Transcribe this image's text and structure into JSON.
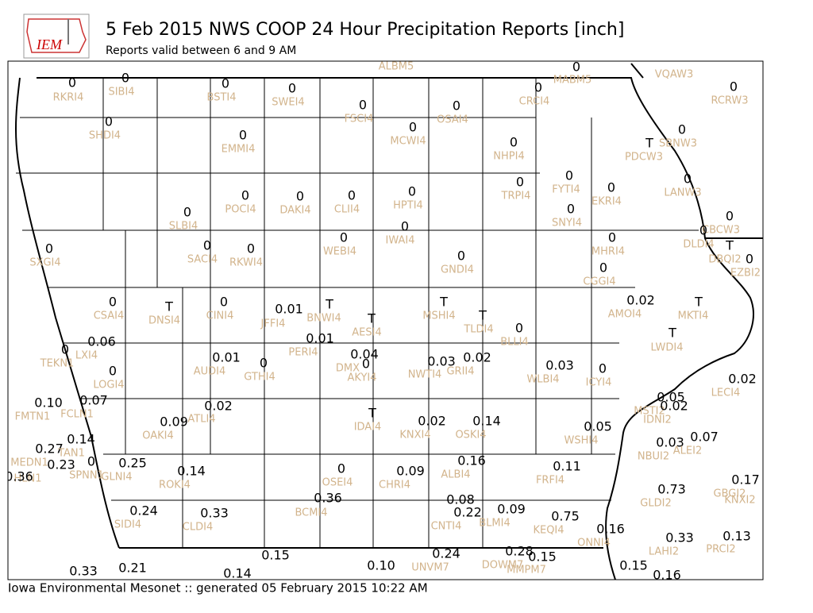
{
  "header": {
    "logo": "IEM",
    "title": "5 Feb 2015 NWS COOP 24 Hour Precipitation Reports [inch]",
    "subtitle": "Reports valid between 6 and 9 AM"
  },
  "footer": "Iowa Environmental Mesonet :: generated 05 February 2015 10:22 AM",
  "stations": [
    {
      "id": "RKRI4",
      "value": "0"
    },
    {
      "id": "SIBI4",
      "value": "0"
    },
    {
      "id": "BSTI4",
      "value": "0"
    },
    {
      "id": "SWEI4",
      "value": "0"
    },
    {
      "id": "FSCI4",
      "value": "0"
    },
    {
      "id": "OSAI4",
      "value": "0"
    },
    {
      "id": "CRCI4",
      "value": "0"
    },
    {
      "id": "MABM5",
      "value": "0"
    },
    {
      "id": "RCRW3",
      "value": "0"
    },
    {
      "id": "SHDI4",
      "value": "0"
    },
    {
      "id": "EMMI4",
      "value": "0"
    },
    {
      "id": "MCWI4",
      "value": "0"
    },
    {
      "id": "NHPI4",
      "value": "0"
    },
    {
      "id": "SBNW3",
      "value": "0"
    },
    {
      "id": "PDCW3",
      "value": "T"
    },
    {
      "id": "LANW3",
      "value": "0"
    },
    {
      "id": "FYTI4",
      "value": "0"
    },
    {
      "id": "EKRI4",
      "value": "0"
    },
    {
      "id": "TRPI4",
      "value": "0"
    },
    {
      "id": "POCI4",
      "value": "0"
    },
    {
      "id": "DAKI4",
      "value": "0"
    },
    {
      "id": "CLII4",
      "value": "0"
    },
    {
      "id": "HPTI4",
      "value": "0"
    },
    {
      "id": "SLBI4",
      "value": "0"
    },
    {
      "id": "SNYI4",
      "value": "0"
    },
    {
      "id": "CBCW3",
      "value": "0"
    },
    {
      "id": "DLDI4",
      "value": "0"
    },
    {
      "id": "IWAI4",
      "value": "0"
    },
    {
      "id": "WEBI4",
      "value": "0"
    },
    {
      "id": "SACI4",
      "value": "0"
    },
    {
      "id": "RKWI4",
      "value": "0"
    },
    {
      "id": "SXGI4",
      "value": "0"
    },
    {
      "id": "GNDI4",
      "value": "0"
    },
    {
      "id": "MHRI4",
      "value": "0"
    },
    {
      "id": "DBQI2",
      "value": "T"
    },
    {
      "id": "EZBI2",
      "value": "0"
    },
    {
      "id": "CGGI4",
      "value": "0"
    },
    {
      "id": "CSAI4",
      "value": "0"
    },
    {
      "id": "DNSI4",
      "value": "T"
    },
    {
      "id": "CINI4",
      "value": "0"
    },
    {
      "id": "JFFI4",
      "value": "0.01"
    },
    {
      "id": "BNWI4",
      "value": "T"
    },
    {
      "id": "AESI4",
      "value": "T"
    },
    {
      "id": "MSHI4",
      "value": "T"
    },
    {
      "id": "TLDI4",
      "value": "T"
    },
    {
      "id": "BLLI4",
      "value": "0"
    },
    {
      "id": "AMOI4",
      "value": "0.02"
    },
    {
      "id": "MKTI4",
      "value": "T"
    },
    {
      "id": "LWDI4",
      "value": "T"
    },
    {
      "id": "PERI4",
      "value": "0.01"
    },
    {
      "id": "LXI4",
      "value": "0.06"
    },
    {
      "id": "TEKN1",
      "value": "0"
    },
    {
      "id": "AUDI4",
      "value": "0.01"
    },
    {
      "id": "GTHI4",
      "value": "0"
    },
    {
      "id": "DMX",
      "value": "0.04"
    },
    {
      "id": "AKYI4",
      "value": "0"
    },
    {
      "id": "NWTI4",
      "value": "0.03"
    },
    {
      "id": "GRII4",
      "value": "0.02"
    },
    {
      "id": "WLBI4",
      "value": "0.03"
    },
    {
      "id": "ICYI4",
      "value": "0"
    },
    {
      "id": "LOGI4",
      "value": "0"
    },
    {
      "id": "LECI4",
      "value": "0.02"
    },
    {
      "id": "FMTN1",
      "value": "0.10"
    },
    {
      "id": "FCLN1",
      "value": "0.07"
    },
    {
      "id": "ATLI4",
      "value": "0.02"
    },
    {
      "id": "OAKI4",
      "value": "0.09"
    },
    {
      "id": "IDAI4",
      "value": "T"
    },
    {
      "id": "KNXI4",
      "value": "0.02"
    },
    {
      "id": "OSKI4",
      "value": "0.14"
    },
    {
      "id": "WSHI4",
      "value": "0.05"
    },
    {
      "id": "MSTI2",
      "value": "0.05"
    },
    {
      "id": "IDNI2",
      "value": "0.02"
    },
    {
      "id": "NBUI2",
      "value": "0.03"
    },
    {
      "id": "ALEI2",
      "value": "0.07"
    },
    {
      "id": "MEDN1",
      "value": "0.27"
    },
    {
      "id": "TAN1",
      "value": "0.14"
    },
    {
      "id": "HLN1",
      "value": "0.23"
    },
    {
      "id": "SPNN1",
      "value": "0"
    },
    {
      "id": "GLNI4",
      "value": "0.25"
    },
    {
      "id": "ROKI4",
      "value": "0.14"
    },
    {
      "id": "OSEI4",
      "value": "0"
    },
    {
      "id": "CHRI4",
      "value": "0.09"
    },
    {
      "id": "ALBI4",
      "value": "0.16"
    },
    {
      "id": "FRFI4",
      "value": "0.11"
    },
    {
      "id": "GBGI2",
      "value": "0.17"
    },
    {
      "id": "BCMI4",
      "value": "0.36"
    },
    {
      "id": "CNTI4",
      "value": "0.22"
    },
    {
      "id": "BLMI4",
      "value": "0.09"
    },
    {
      "id": "KEQI4",
      "value": "0.75"
    },
    {
      "id": "GLDI2",
      "value": "0.73"
    },
    {
      "id": "SIDI4",
      "value": "0.24"
    },
    {
      "id": "CLDI4",
      "value": "0.33"
    },
    {
      "id": "ONNI4",
      "value": "0.16"
    },
    {
      "id": "LAHI2",
      "value": "0.33"
    },
    {
      "id": "PRCI2",
      "value": "0.13"
    },
    {
      "id": "UNVM7",
      "value": "0.24"
    },
    {
      "id": "DOWM7",
      "value": "0.28"
    },
    {
      "id": "MMPM7",
      "value": "0.15"
    }
  ],
  "unlabeled_values": [
    "0.36",
    "0.08",
    "0.15",
    "0.10",
    "0.33",
    "0.21",
    "0.14",
    "0.15",
    "0.16"
  ],
  "unlabeled_ids": [
    "ALBM5",
    "VQAW3",
    "KNXI2"
  ]
}
